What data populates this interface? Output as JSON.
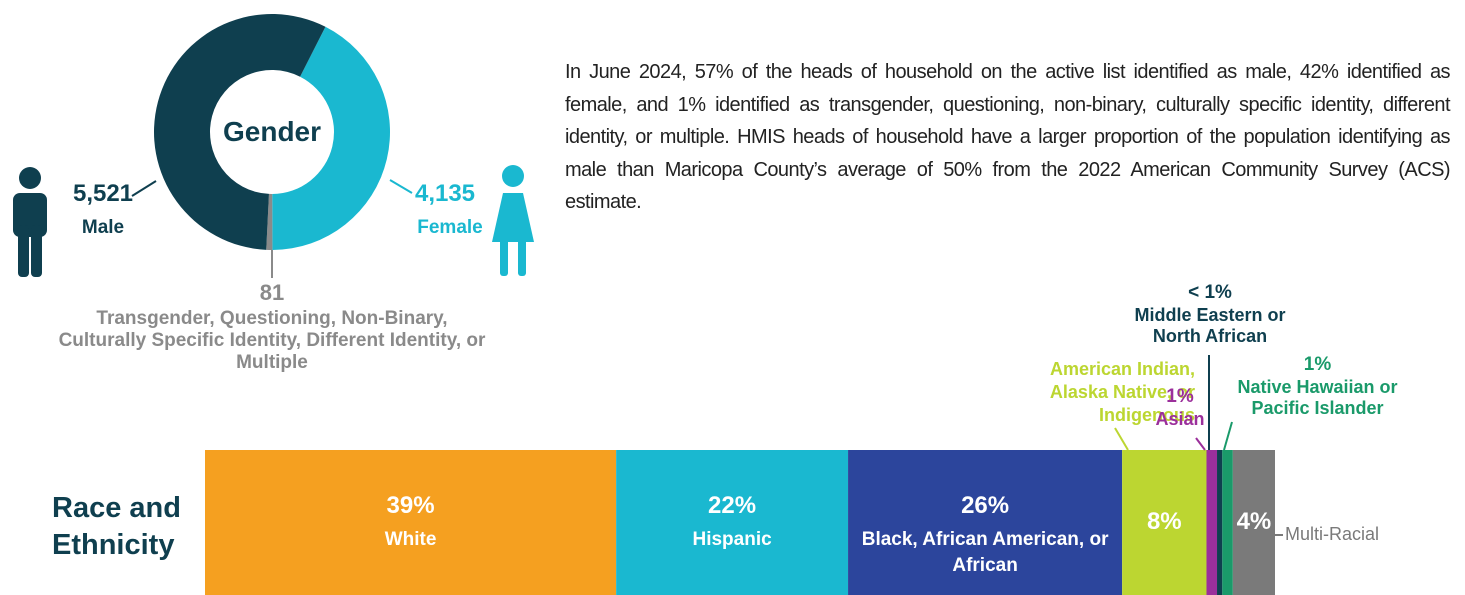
{
  "description": "In June 2024, 57% of the heads of household on the active list identified as male, 42% identified as female, and 1% identified as transgender, questioning, non-binary, culturally specific identity, different identity, or multiple. HMIS heads of household have a larger proportion of the population identifying as male than Maricopa County’s average of 50% from the 2022 American Community Survey (ACS) estimate.",
  "chart_data": [
    {
      "type": "donut",
      "title": "Gender",
      "categories": [
        "Male",
        "Female",
        "Transgender, Questioning, Non-Binary, Culturally Specific Identity, Different Identity, or Multiple"
      ],
      "values": [
        5521,
        4135,
        81
      ],
      "value_labels": [
        "5,521",
        "4,135",
        "81"
      ],
      "colors": [
        "#0f3f4f",
        "#1ab8d0",
        "#8a8a8a"
      ]
    },
    {
      "type": "stacked-bar",
      "title": "Race and Ethnicity",
      "categories": [
        "White",
        "Hispanic",
        "Black, African American, or African",
        "American Indian, Alaska Native, or Indigenous",
        "Asian",
        "Middle Eastern or North African",
        "Native Hawaiian or Pacific Islander",
        "Multi-Racial"
      ],
      "values": [
        39,
        22,
        26,
        8,
        1,
        0.5,
        1,
        4
      ],
      "value_labels": [
        "39%",
        "22%",
        "26%",
        "8%",
        "1%",
        "< 1%",
        "1%",
        "4%"
      ],
      "colors": [
        "#f5a020",
        "#1ab8d0",
        "#2c459c",
        "#bcd631",
        "#9b2f9b",
        "#0f3f4f",
        "#1a9a6a",
        "#7a7a7a"
      ]
    }
  ]
}
